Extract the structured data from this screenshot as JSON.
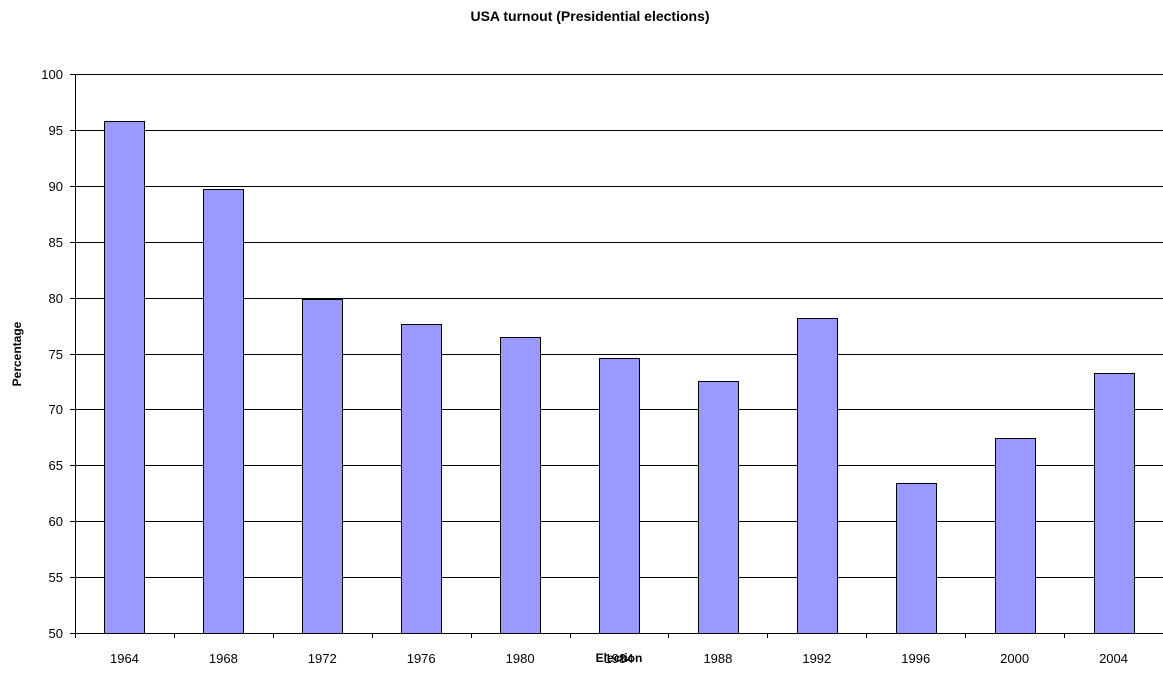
{
  "chart_data": {
    "type": "bar",
    "title": "USA turnout (Presidential elections)",
    "xlabel": "Election",
    "ylabel": "Percentage",
    "categories": [
      "1964",
      "1968",
      "1972",
      "1976",
      "1980",
      "1984",
      "1988",
      "1992",
      "1996",
      "2000",
      "2004"
    ],
    "values": [
      95.8,
      89.7,
      79.9,
      77.6,
      76.5,
      74.6,
      72.5,
      78.2,
      63.4,
      67.4,
      73.3
    ],
    "ylim": [
      50,
      100
    ],
    "yticks": [
      50,
      55,
      60,
      65,
      70,
      75,
      80,
      85,
      90,
      95,
      100
    ],
    "grid": true,
    "legend": "none",
    "bar_color": "#9999ff"
  }
}
